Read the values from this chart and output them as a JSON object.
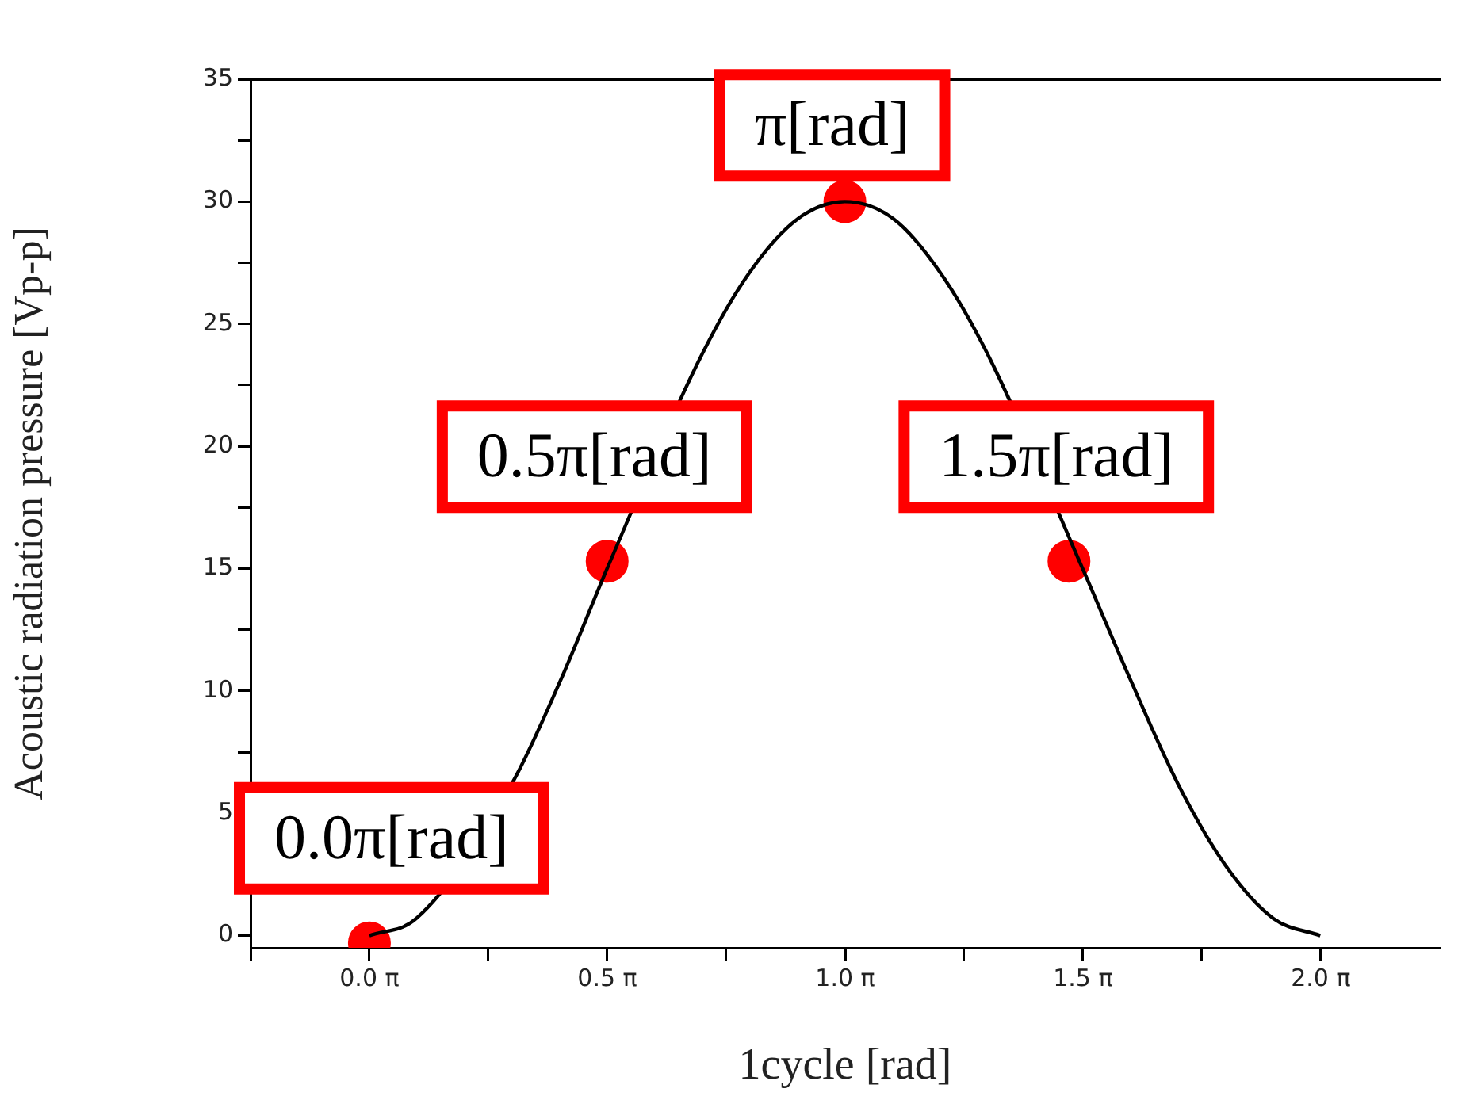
{
  "chart_data": {
    "type": "line",
    "xlabel": "1cycle [rad]",
    "ylabel": "Acoustic radiation pressure [Vp-p]",
    "xlim": [
      -0.785,
      7.069
    ],
    "xticks": [
      {
        "value": -0.785,
        "label": null
      },
      {
        "value": 0,
        "label": "0.0 π"
      },
      {
        "value": 0.785,
        "label": null
      },
      {
        "value": 1.571,
        "label": "0.5 π"
      },
      {
        "value": 2.356,
        "label": null
      },
      {
        "value": 3.142,
        "label": "1.0 π"
      },
      {
        "value": 3.927,
        "label": null
      },
      {
        "value": 4.712,
        "label": "1.5 π"
      },
      {
        "value": 5.498,
        "label": null
      },
      {
        "value": 6.283,
        "label": "2.0 π"
      }
    ],
    "ylim": [
      -0.5,
      35
    ],
    "yticks": [
      0,
      {
        "value": 2.5,
        "label": null
      },
      5,
      {
        "value": 7.5,
        "label": null
      },
      10,
      {
        "value": 12.5,
        "label": null
      },
      15,
      {
        "value": 17.5,
        "label": null
      },
      20,
      {
        "value": 22.5,
        "label": null
      },
      25,
      {
        "value": 27.5,
        "label": null
      },
      30,
      {
        "value": 32.5,
        "label": null
      },
      35
    ],
    "grid": false,
    "legend": false,
    "line_style": "solid",
    "series": [
      {
        "color": "#000000",
        "x": [
          0,
          0.31,
          0.63,
          0.94,
          1.26,
          1.57,
          1.88,
          2.2,
          2.51,
          2.83,
          3.14,
          3.46,
          3.77,
          4.08,
          4.4,
          4.71,
          5.03,
          5.34,
          5.65,
          5.97,
          6.28
        ],
        "values": [
          0,
          0.7,
          null,
          6.2,
          10.4,
          15,
          null,
          23.8,
          27.1,
          29.3,
          30,
          29.3,
          27.1,
          23.8,
          null,
          15,
          10.4,
          6.2,
          2.9,
          0.7,
          0
        ]
      },
      {
        "type": "scatter",
        "marker": "circle",
        "color": "#ff0000",
        "x": [
          0,
          1.57,
          3.14,
          4.62
        ],
        "values": [
          -0.3,
          15.3,
          30,
          15.3
        ]
      }
    ],
    "annotations": [
      {
        "text": "0.0π[rad]",
        "x": 0,
        "y": -0.3
      },
      {
        "text": "0.5π[rad]",
        "x": 1.57,
        "y": 15.3
      },
      {
        "text": "π[rad]",
        "x": 3.14,
        "y": 30
      },
      {
        "text": "1.5π[rad]",
        "x": 4.62,
        "y": 15.3
      }
    ]
  }
}
